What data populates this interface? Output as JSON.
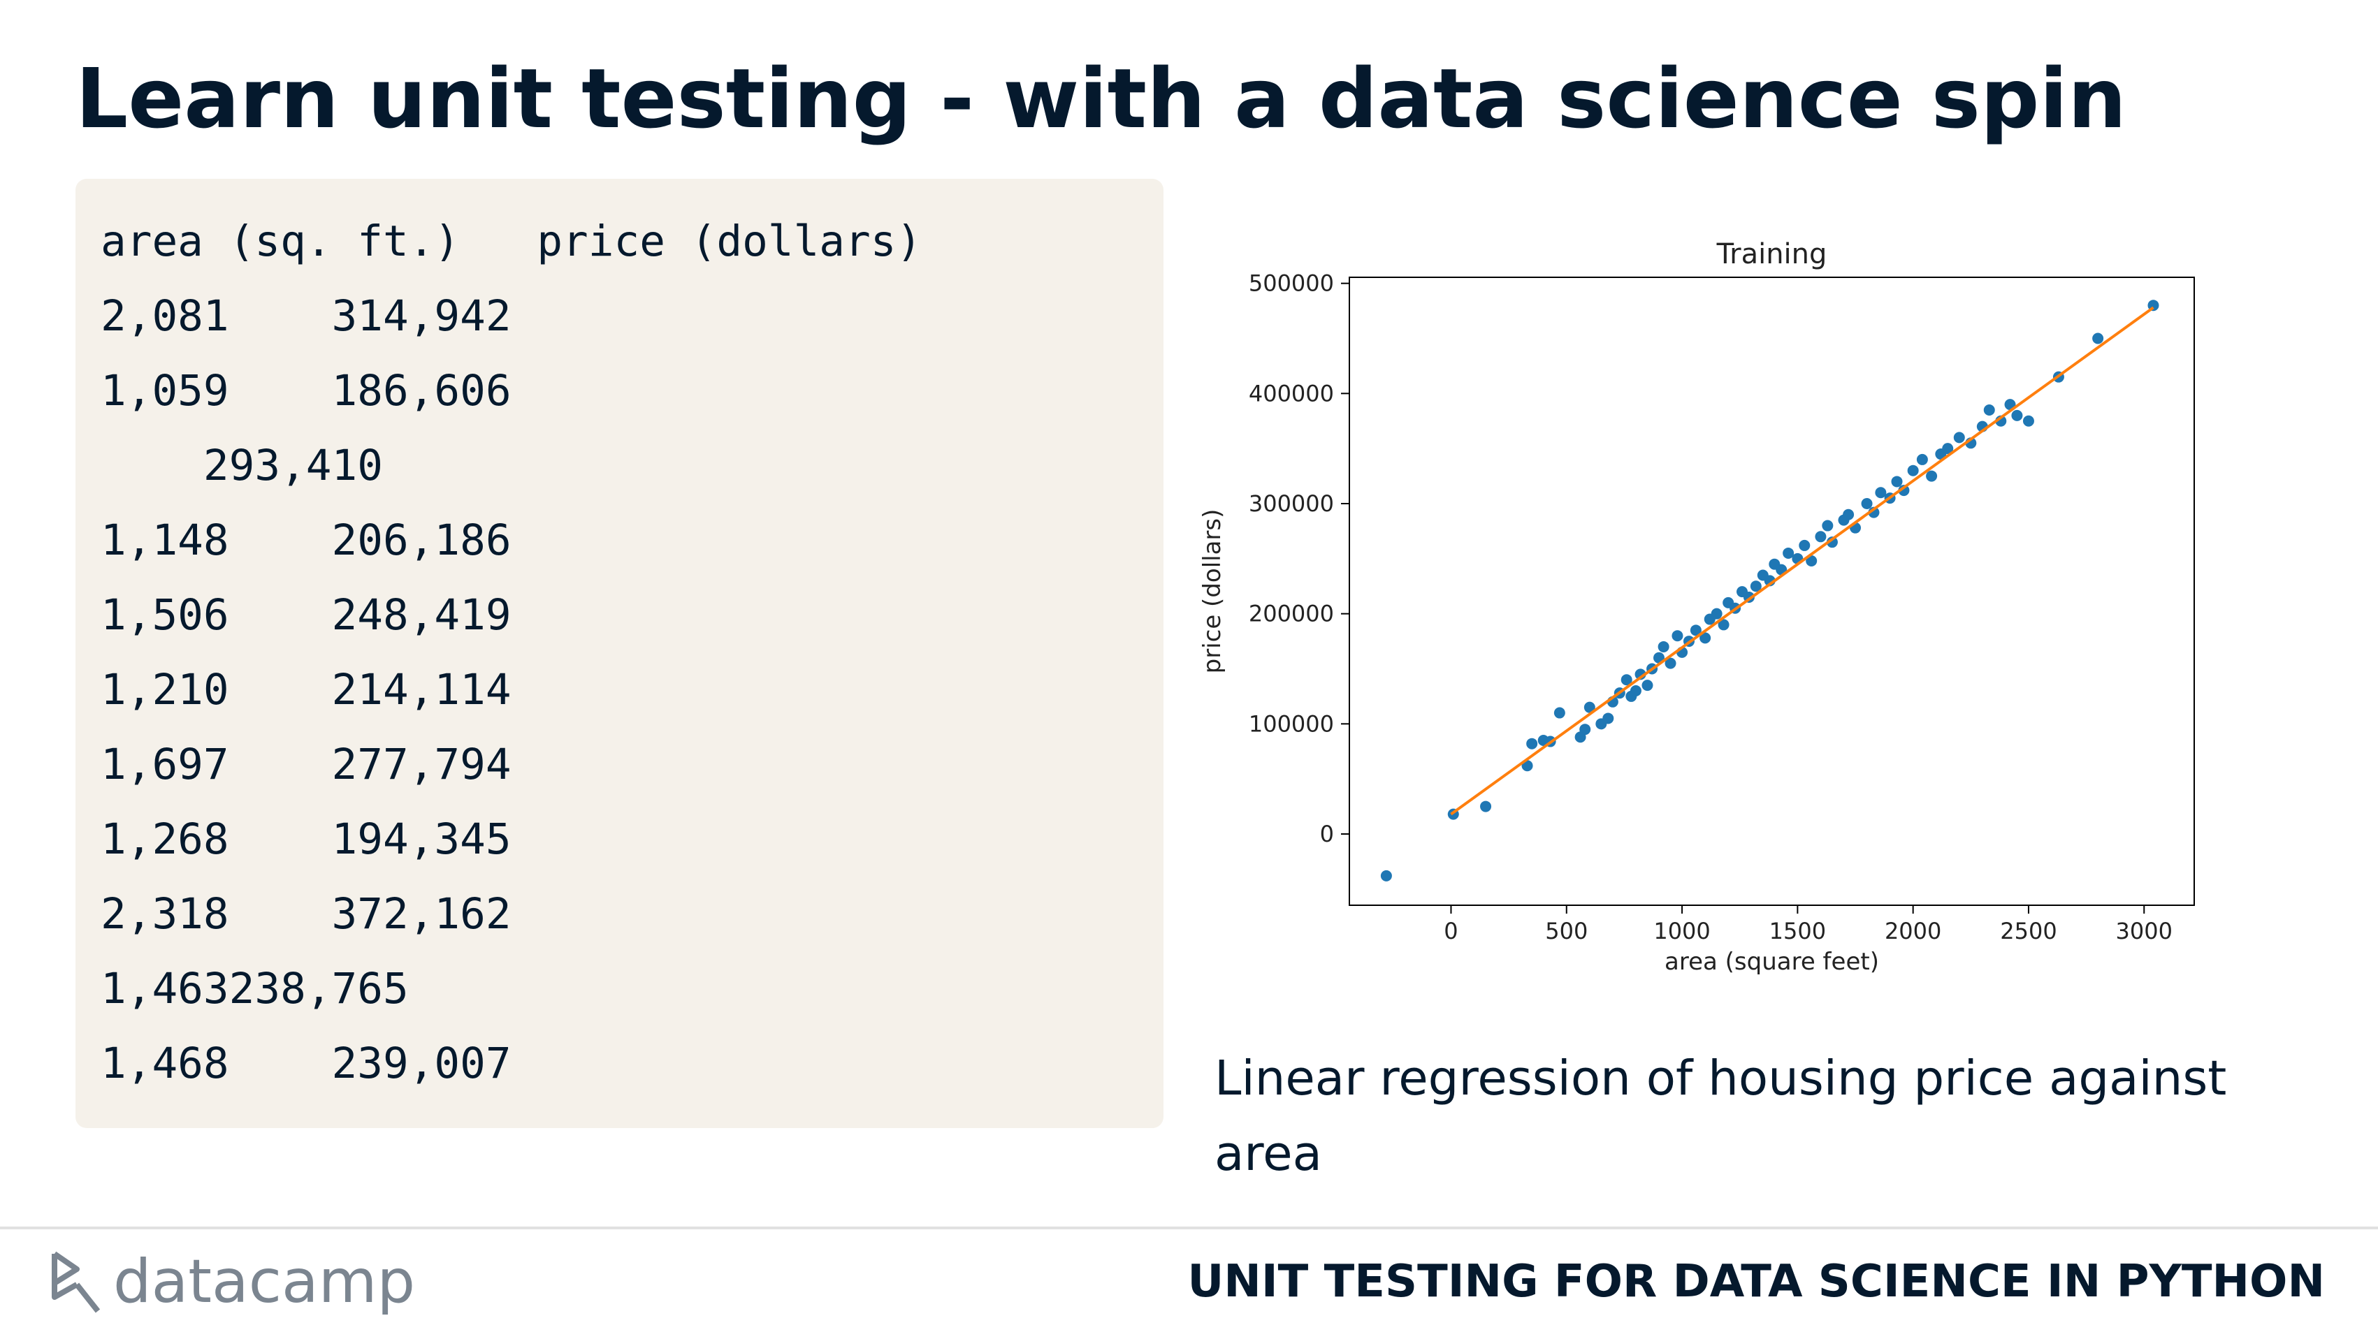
{
  "header": {
    "title": "Learn unit testing - with a data science spin"
  },
  "code": {
    "lines": [
      "area (sq. ft.)   price (dollars)",
      "2,081    314,942",
      "1,059    186,606",
      "    293,410",
      "1,148    206,186",
      "1,506    248,419",
      "1,210    214,114",
      "1,697    277,794",
      "1,268    194,345",
      "2,318    372,162",
      "1,463238,765",
      "1,468    239,007"
    ]
  },
  "chart_data": {
    "type": "scatter",
    "title": "Training",
    "x_label": "area (square feet)",
    "y_label": "price (dollars)",
    "xlim": [
      -440,
      3217
    ],
    "ylim": [
      -64700,
      505500
    ],
    "xticks": [
      0,
      500,
      1000,
      1500,
      2000,
      2500,
      3000
    ],
    "yticks": [
      0,
      100000,
      200000,
      300000,
      400000,
      500000
    ],
    "series": [
      {
        "kind": "points",
        "color": "#1f77b4",
        "x": [
          -280,
          10,
          150,
          330,
          350,
          400,
          430,
          470,
          560,
          580,
          600,
          650,
          680,
          700,
          730,
          760,
          780,
          800,
          820,
          850,
          870,
          900,
          920,
          950,
          980,
          1000,
          1030,
          1060,
          1100,
          1120,
          1150,
          1180,
          1200,
          1230,
          1260,
          1290,
          1320,
          1350,
          1380,
          1400,
          1430,
          1460,
          1500,
          1530,
          1560,
          1600,
          1630,
          1650,
          1700,
          1720,
          1750,
          1800,
          1830,
          1860,
          1900,
          1930,
          1960,
          2000,
          2040,
          2080,
          2120,
          2150,
          2200,
          2250,
          2300,
          2330,
          2380,
          2420,
          2450,
          2500,
          2630,
          2800,
          3040
        ],
        "values": [
          -38000,
          18000,
          25000,
          62000,
          82000,
          85000,
          84000,
          110000,
          88000,
          95000,
          115000,
          100000,
          105000,
          120000,
          128000,
          140000,
          125000,
          130000,
          145000,
          135000,
          150000,
          160000,
          170000,
          155000,
          180000,
          165000,
          175000,
          185000,
          178000,
          195000,
          200000,
          190000,
          210000,
          205000,
          220000,
          215000,
          225000,
          235000,
          230000,
          245000,
          240000,
          255000,
          250000,
          262000,
          248000,
          270000,
          280000,
          265000,
          285000,
          290000,
          278000,
          300000,
          292000,
          310000,
          305000,
          320000,
          312000,
          330000,
          340000,
          325000,
          345000,
          350000,
          360000,
          355000,
          370000,
          385000,
          375000,
          390000,
          380000,
          375000,
          415000,
          450000,
          480000
        ]
      },
      {
        "kind": "line",
        "color": "#ff7f0e",
        "x": [
          0,
          3040
        ],
        "values": [
          18000,
          478000
        ]
      }
    ]
  },
  "caption": "Linear regression of housing price against area",
  "footer": {
    "logo": "datacamp",
    "course": "UNIT TESTING FOR DATA SCIENCE IN PYTHON"
  }
}
